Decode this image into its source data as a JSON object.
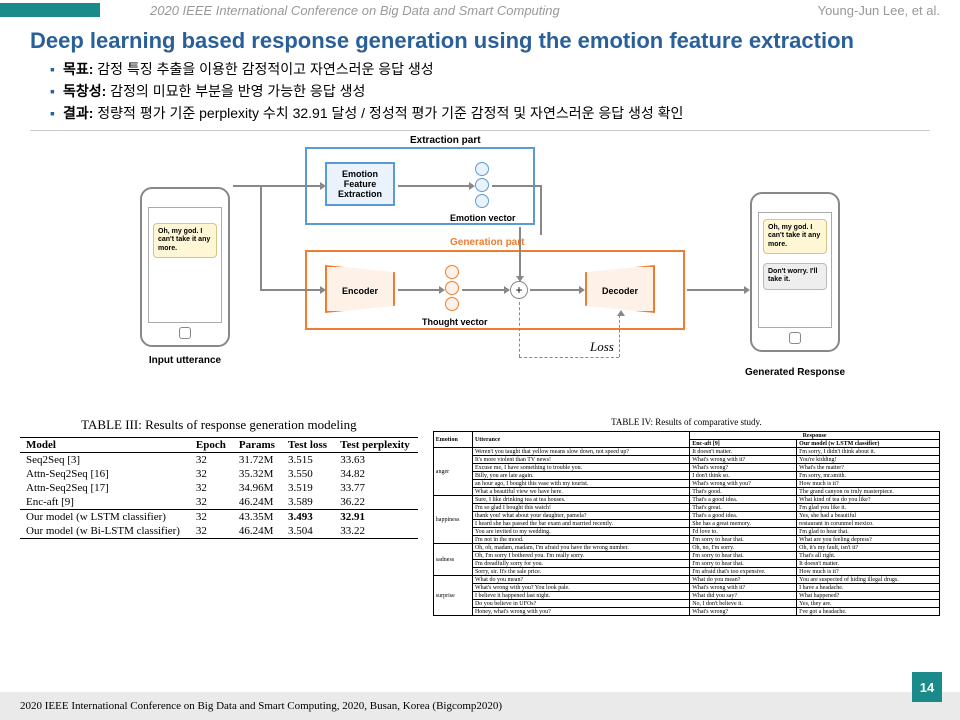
{
  "header": {
    "conference": "2020 IEEE International Conference on Big Data and Smart Computing",
    "authors": "Young-Jun  Lee, et al."
  },
  "title": "Deep learning based response generation using the emotion feature extraction",
  "bullets": [
    {
      "label": "목표:",
      "text": " 감정 특징 추출을 이용한 감정적이고 자연스러운 응답 생성"
    },
    {
      "label": "독창성:",
      "text": " 감정의 미묘한 부분을 반영 가능한 응답 생성"
    },
    {
      "label": "결과:",
      "text": " 정량적 평가 기준 perplexity 수치 32.91 달성 / 정성적 평가 기준 감정적 및 자연스러운 응답 생성 확인"
    }
  ],
  "diagram": {
    "input_label": "Input utterance",
    "output_label": "Generated Response",
    "extraction_title": "Extraction part",
    "generation_title": "Generation part",
    "emotion_module": "Emotion Feature Extraction",
    "encoder": "Encoder",
    "decoder": "Decoder",
    "emotion_vec": "Emotion vector",
    "thought_vec": "Thought vector",
    "loss": "Loss",
    "speech1": "Oh, my god. I can't take it any more.",
    "speech2": "Oh, my god. I can't take it any more.",
    "speech3": "Don't worry. I'll take it."
  },
  "table3": {
    "caption": "TABLE III: Results of response generation modeling",
    "headers": [
      "Model",
      "Epoch",
      "Params",
      "Test loss",
      "Test perplexity"
    ],
    "rows": [
      [
        "Seq2Seq [3]",
        "32",
        "31.72M",
        "3.515",
        "33.63"
      ],
      [
        "Attn-Seq2Seq [16]",
        "32",
        "35.32M",
        "3.550",
        "34.82"
      ],
      [
        "Attn-Seq2Seq [17]",
        "32",
        "34.96M",
        "3.519",
        "33.77"
      ],
      [
        "Enc-aft [9]",
        "32",
        "46.24M",
        "3.589",
        "36.22"
      ],
      [
        "Our model (w LSTM classifier)",
        "32",
        "43.35M",
        "3.493",
        "32.91"
      ],
      [
        "Our model (w Bi-LSTM classifier)",
        "32",
        "46.24M",
        "3.504",
        "33.22"
      ]
    ]
  },
  "table4": {
    "caption": "TABLE IV: Results of comparative study.",
    "h_emotion": "Emotion",
    "h_utterance": "Utterance",
    "h_response": "Response",
    "h_encaft": "Enc-aft [9]",
    "h_ours": "Our model (w LSTM classifier)",
    "groups": [
      {
        "emo": "anger",
        "rows": [
          [
            "Weren't you taught that yellow means slow down, not speed up?",
            "It doesn't matter.",
            "I'm sorry, I didn't think about it."
          ],
          [
            "It's more violent than TV news!",
            "What's wrong with it?",
            "You're kidding!"
          ],
          [
            "Excuse me, I have something to trouble you.",
            "What's wrong?",
            "What's the matter?"
          ],
          [
            "Billy, you are late again.",
            "I don't think so.",
            "I'm sorry, mr.smith."
          ],
          [
            "an hour ago, I bought this vase with my tourist.",
            "What's wrong with you?",
            "How much is it?"
          ],
          [
            "What a beautiful view we have here.",
            "That's good.",
            "The grand canyon os truly masterpiece."
          ]
        ]
      },
      {
        "emo": "happiness",
        "rows": [
          [
            "Sure, I like drinking tea at tea houses.",
            "That's a good idea.",
            "What kind of tea do you like?"
          ],
          [
            "I'm so glad I bought this watch!",
            "That's great.",
            "I'm glad you like it."
          ],
          [
            "thank you! what about your daughter, pamela?",
            "That's a good idea.",
            "Yes, she had a beautiful"
          ],
          [
            "I heard she has passed the bar exam and married recently.",
            "She has a great memory.",
            "restaurant in corunmel mexico."
          ],
          [
            "You are invited to my wedding.",
            "I'd love to.",
            "I'm glad to hear that."
          ],
          [
            "I'm not in the mood.",
            "I'm sorry to hear that.",
            "What are you feeling depress?"
          ]
        ]
      },
      {
        "emo": "sadness",
        "rows": [
          [
            "Oh, oh, madam, madam, I'm afraid you have the wrong number.",
            "Oh, no, I'm sorry.",
            "Oh, it's my fault, isn't it?"
          ],
          [
            "Oh, I'm sorry I bothered you. I'm really sorry.",
            "I'm sorry to hear that.",
            "That's all right."
          ],
          [
            "I'm dreadfully sorry for you.",
            "I'm sorry to hear that.",
            "It doesn't matter."
          ],
          [
            "Sorry, sir. It's the sale price.",
            "I'm afraid that's too expensive.",
            "How much is it?"
          ]
        ]
      },
      {
        "emo": "surprise",
        "rows": [
          [
            "What do you mean?",
            "What do you mean?",
            "You are suspected of hiding illegal drugs."
          ],
          [
            "What's wrong with you? You look pale.",
            "What's wrong with it?",
            "I have a headache."
          ],
          [
            "I believe it happened last night.",
            "What did you say?",
            "What happened?"
          ],
          [
            "Do you believe in UFOs?",
            "No, I don't believe it.",
            "Yes, they are."
          ],
          [
            "Honey, what's wrong with you?",
            "What's wrong?",
            "I've got a headache."
          ]
        ]
      }
    ]
  },
  "footer": "2020 IEEE  International  Conference  on Big  Data  and Smart Computing,  2020, Busan,  Korea  (Bigcomp2020)",
  "page": "14"
}
